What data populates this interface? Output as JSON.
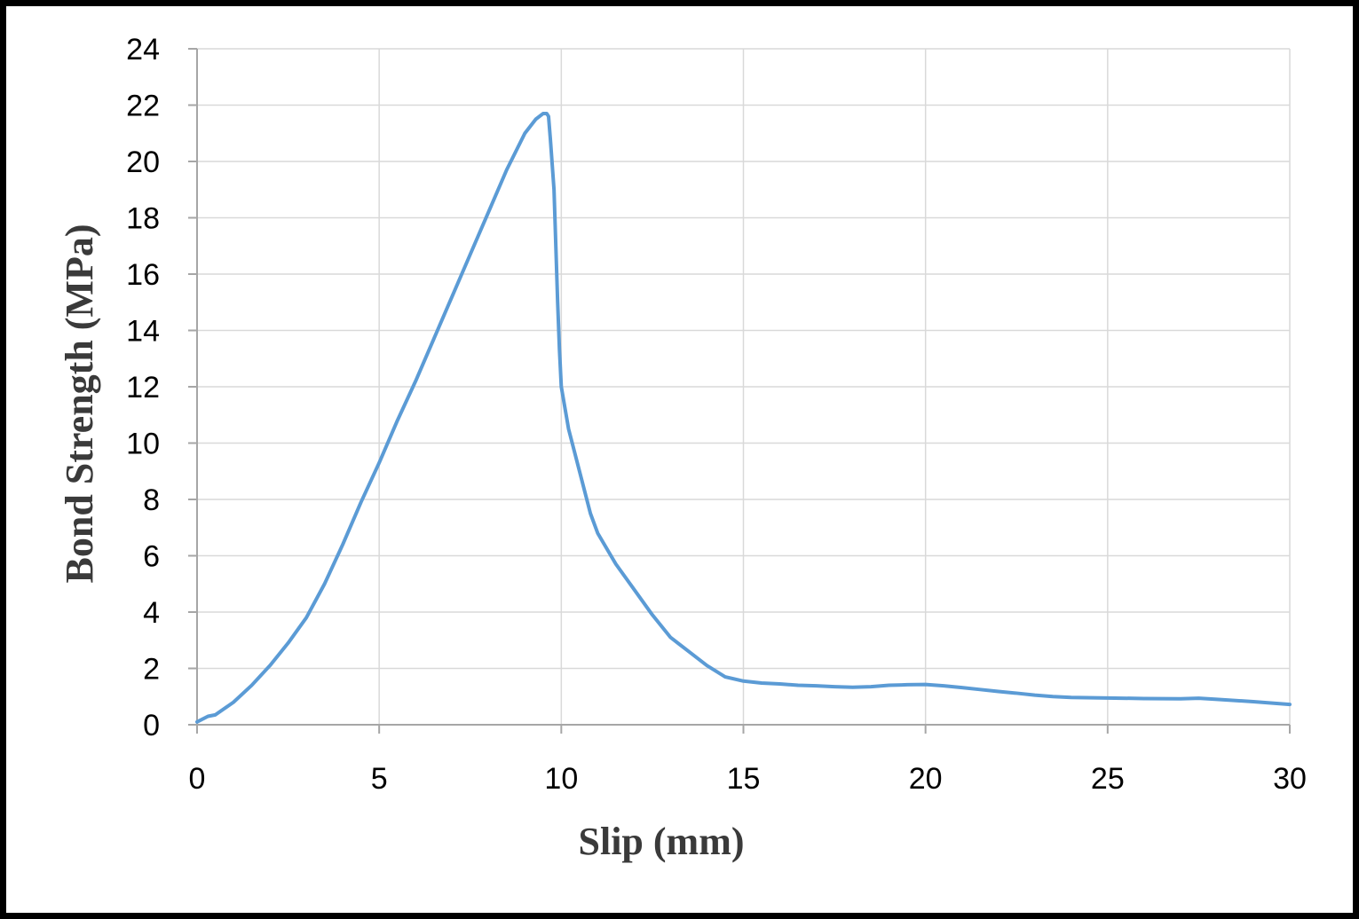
{
  "chart_data": {
    "type": "line",
    "title": "",
    "xlabel": "Slip (mm)",
    "ylabel": "Bond Strength (MPa)",
    "xlim": [
      0,
      30
    ],
    "ylim": [
      0,
      24
    ],
    "x_ticks": [
      0,
      5,
      10,
      15,
      20,
      25,
      30
    ],
    "y_ticks": [
      0,
      2,
      4,
      6,
      8,
      10,
      12,
      14,
      16,
      18,
      20,
      22,
      24
    ],
    "grid": true,
    "legend": "none",
    "line_color": "#5b9bd5",
    "series": [
      {
        "x": [
          0,
          0.3,
          0.5,
          1.0,
          1.5,
          2.0,
          2.5,
          3.0,
          3.5,
          4.0,
          4.5,
          5.0,
          5.5,
          6.0,
          6.5,
          7.0,
          7.5,
          8.0,
          8.5,
          9.0,
          9.3,
          9.5,
          9.6,
          9.65,
          9.7,
          9.8,
          9.85,
          9.9,
          9.95,
          10.0,
          10.2,
          10.5,
          10.8,
          11.0,
          11.5,
          12.0,
          12.5,
          13.0,
          13.5,
          14.0,
          14.5,
          15.0,
          15.5,
          16.0,
          16.5,
          17.0,
          17.5,
          18.0,
          18.5,
          19.0,
          19.5,
          20.0,
          20.5,
          21.0,
          21.5,
          22.0,
          22.5,
          23.0,
          23.5,
          24.0,
          25.0,
          26.0,
          27.0,
          27.5,
          28.0,
          29.0,
          30.0
        ],
        "values": [
          0.1,
          0.3,
          0.35,
          0.8,
          1.4,
          2.1,
          2.9,
          3.8,
          5.0,
          6.4,
          7.9,
          9.3,
          10.8,
          12.2,
          13.7,
          15.2,
          16.7,
          18.2,
          19.7,
          21.0,
          21.5,
          21.7,
          21.7,
          21.6,
          20.8,
          19.0,
          17.0,
          15.0,
          13.3,
          12.0,
          10.5,
          9.0,
          7.5,
          6.8,
          5.7,
          4.8,
          3.9,
          3.1,
          2.6,
          2.1,
          1.7,
          1.55,
          1.48,
          1.45,
          1.4,
          1.38,
          1.35,
          1.33,
          1.35,
          1.4,
          1.42,
          1.43,
          1.38,
          1.32,
          1.25,
          1.18,
          1.12,
          1.05,
          1.0,
          0.97,
          0.95,
          0.93,
          0.92,
          0.94,
          0.9,
          0.82,
          0.72
        ]
      }
    ]
  }
}
